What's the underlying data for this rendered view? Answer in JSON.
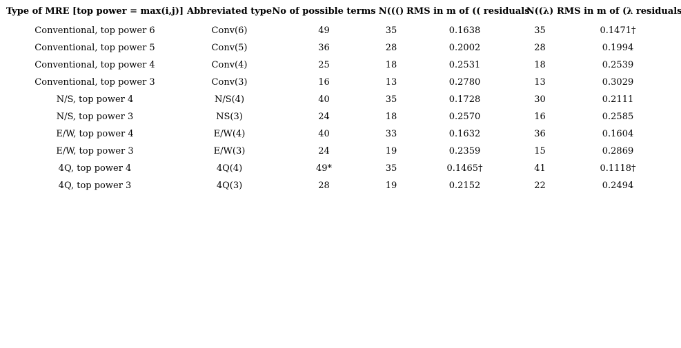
{
  "colors": {
    "background": "#ffffff",
    "text": "#000000"
  },
  "table": {
    "columns": [
      "Type of MRE [top power = max(i,j)]",
      "Abbreviated type",
      "No of possible terms",
      "N((()",
      "RMS in m of (( residuals",
      "N((λ)",
      "RMS in m of (λ residuals"
    ],
    "rows": [
      [
        "Conventional, top power 6",
        "Conv(6)",
        "49",
        "35",
        "0.1638",
        "35",
        "0.1471†"
      ],
      [
        "Conventional, top power 5",
        "Conv(5)",
        "36",
        "28",
        "0.2002",
        "28",
        "0.1994"
      ],
      [
        "Conventional, top power 4",
        "Conv(4)",
        "25",
        "18",
        "0.2531",
        "18",
        "0.2539"
      ],
      [
        "Conventional, top power 3",
        "Conv(3)",
        "16",
        "13",
        "0.2780",
        "13",
        "0.3029"
      ],
      [
        "N/S, top power 4",
        "N/S(4)",
        "40",
        "35",
        "0.1728",
        "30",
        "0.2111"
      ],
      [
        "N/S, top power 3",
        "NS(3)",
        "24",
        "18",
        "0.2570",
        "16",
        "0.2585"
      ],
      [
        "E/W, top power 4",
        "E/W(4)",
        "40",
        "33",
        "0.1632",
        "36",
        "0.1604"
      ],
      [
        "E/W, top power 3",
        "E/W(3)",
        "24",
        "19",
        "0.2359",
        "15",
        "0.2869"
      ],
      [
        "4Q, top power 4",
        "4Q(4)",
        "49*",
        "35",
        "0.1465†",
        "41",
        "0.1118†"
      ],
      [
        "4Q, top power 3",
        "4Q(3)",
        "28",
        "19",
        "0.2152",
        "22",
        "0.2494"
      ]
    ]
  }
}
